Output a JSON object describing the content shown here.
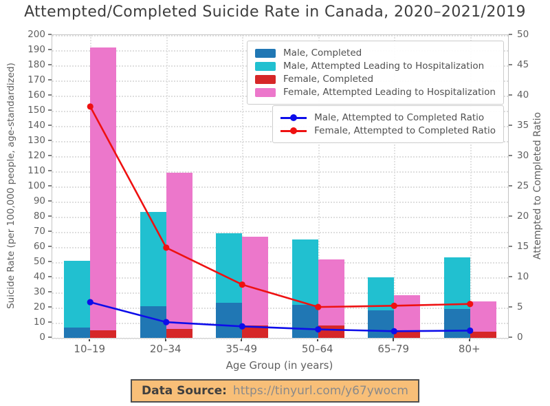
{
  "chart_data": {
    "type": "bar",
    "title": "Attempted/Completed Suicide Rate in Canada, 2020–2021/2019",
    "categories": [
      "10–19",
      "20–34",
      "35–49",
      "50–64",
      "65–79",
      "80+"
    ],
    "xlabel": "Age Group (in years)",
    "left_axis": {
      "label": "Suicide Rate (per 100,000 people, age-standardized)",
      "min": 0,
      "max": 200,
      "step": 10
    },
    "right_axis": {
      "label": "Attempted to Completed Ratio",
      "min": 0,
      "max": 50,
      "step": 5
    },
    "grid": "dotted",
    "bar_series": [
      {
        "name": "Male, Completed",
        "group": "male",
        "layer": 1,
        "color": "#2077b4",
        "values": [
          7,
          21,
          23,
          22,
          18,
          19
        ]
      },
      {
        "name": "Male, Attempted Leading to Hospitalization",
        "group": "male",
        "layer": 0,
        "color": "#21c0d0",
        "values": [
          51,
          83,
          69,
          65,
          40,
          53
        ]
      },
      {
        "name": "Female, Completed",
        "group": "female",
        "layer": 1,
        "color": "#d62728",
        "values": [
          5,
          6,
          8,
          8,
          4,
          4
        ]
      },
      {
        "name": "Female, Attempted Leading to Hospitalization",
        "group": "female",
        "layer": 0,
        "color": "#ec77cb",
        "values": [
          192,
          109,
          67,
          52,
          28,
          24
        ]
      }
    ],
    "line_series": [
      {
        "name": "Male, Attempted to Completed Ratio",
        "axis": "right",
        "color": "#0d0dea",
        "values": [
          5.9,
          2.6,
          1.9,
          1.4,
          1.1,
          1.2
        ]
      },
      {
        "name": "Female, Attempted to Completed Ratio",
        "axis": "right",
        "color": "#ee1111",
        "values": [
          38.2,
          14.9,
          8.8,
          5.1,
          5.3,
          5.6
        ]
      }
    ],
    "legend_bars_position": "upper right",
    "legend_lines_position": "upper right, below bar legend"
  },
  "footer": {
    "label": "Data Source:",
    "url": "https://tinyurl.com/y67ywocm",
    "bg_color": "#f8bf78",
    "border_color": "#4f4f4f"
  }
}
